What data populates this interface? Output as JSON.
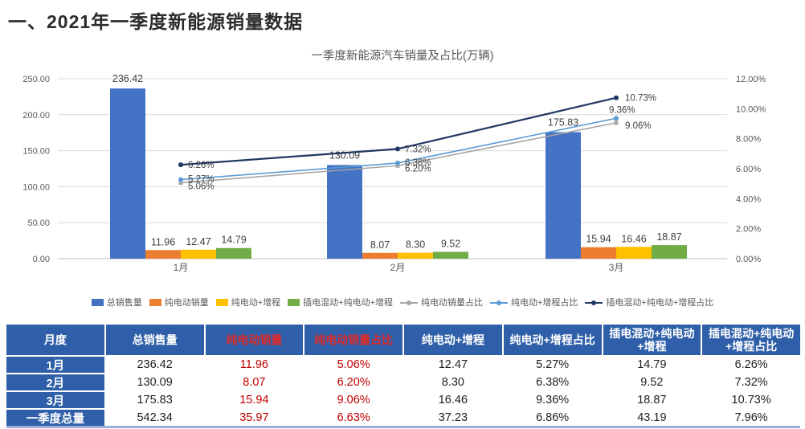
{
  "page": {
    "title": "一、2021年一季度新能源销量数据"
  },
  "chart_data": {
    "type": "bar",
    "combo": "bar+line",
    "title": "一季度新能源汽车销量及占比(万辆)",
    "categories": [
      "1月",
      "2月",
      "3月"
    ],
    "bar_series": [
      {
        "name": "总销售量",
        "color": "#4472C4",
        "values": [
          236.42,
          130.09,
          175.83
        ]
      },
      {
        "name": "纯电动销量",
        "color": "#ED7D31",
        "values": [
          11.96,
          8.07,
          15.94
        ]
      },
      {
        "name": "纯电动+增程",
        "color": "#FFC000",
        "values": [
          12.47,
          8.3,
          16.46
        ]
      },
      {
        "name": "插电混动+纯电动+增程",
        "color": "#70AD47",
        "values": [
          14.79,
          9.52,
          18.87
        ]
      }
    ],
    "line_series": [
      {
        "name": "纯电动销量占比",
        "color": "#A6A6A6",
        "values": [
          5.06,
          6.2,
          9.06
        ],
        "labels": [
          "5.06%",
          "6.20%",
          "9.06%"
        ]
      },
      {
        "name": "纯电动+增程占比",
        "color": "#5B9BD5",
        "values": [
          5.27,
          6.38,
          9.36
        ],
        "labels": [
          "5.27%",
          "6.38%",
          "9.36%"
        ]
      },
      {
        "name": "插电混动+纯电动+增程占比",
        "color": "#1F3864",
        "values": [
          6.26,
          7.32,
          10.73
        ],
        "labels": [
          "6.26%",
          "7.32%",
          "10.73%"
        ]
      }
    ],
    "left_axis": {
      "min": 0,
      "max": 250,
      "step": 50,
      "tick_labels": [
        "0.00",
        "50.00",
        "100.00",
        "150.00",
        "200.00",
        "250.00"
      ]
    },
    "right_axis": {
      "min": 0,
      "max": 12,
      "step": 2,
      "tick_labels": [
        "0.00%",
        "2.00%",
        "4.00%",
        "6.00%",
        "8.00%",
        "10.00%",
        "12.00%"
      ]
    },
    "grid": true,
    "legend_position": "bottom"
  },
  "table": {
    "headers": [
      {
        "label": "月度",
        "red": false
      },
      {
        "label": "总销售量",
        "red": false
      },
      {
        "label": "纯电动销量",
        "red": true
      },
      {
        "label": "纯电动销量占比",
        "red": true
      },
      {
        "label": "纯电动+增程",
        "red": false
      },
      {
        "label": "纯电动+增程占比",
        "red": false
      },
      {
        "label": "插电混动+纯电动+增程",
        "red": false
      },
      {
        "label": "插电混动+纯电动+增程占比",
        "red": false
      }
    ],
    "red_cell_indices": [
      1,
      2
    ],
    "rows": [
      {
        "label": "1月",
        "cells": [
          "236.42",
          "11.96",
          "5.06%",
          "12.47",
          "5.27%",
          "14.79",
          "6.26%"
        ]
      },
      {
        "label": "2月",
        "cells": [
          "130.09",
          "8.07",
          "6.20%",
          "8.30",
          "6.38%",
          "9.52",
          "7.32%"
        ]
      },
      {
        "label": "3月",
        "cells": [
          "175.83",
          "15.94",
          "9.06%",
          "16.46",
          "9.36%",
          "18.87",
          "10.73%"
        ]
      },
      {
        "label": "一季度总量",
        "cells": [
          "542.34",
          "35.97",
          "6.63%",
          "37.23",
          "6.86%",
          "43.19",
          "7.96%"
        ]
      }
    ]
  },
  "colors": {
    "table_header_bg": "#2F5FA8",
    "table_band": "#D9DBEA",
    "red_text": "#C00000",
    "header_red_text": "#E02B2B",
    "axis_text": "#595959",
    "gridline": "#D9D9D9"
  }
}
